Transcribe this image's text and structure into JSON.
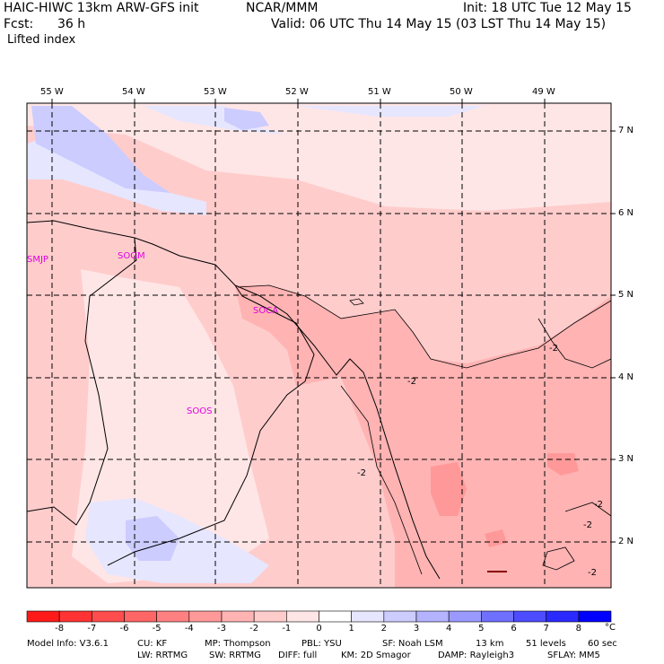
{
  "header": {
    "title": "HAIC-HIWC 13km ARW-GFS init",
    "org": "NCAR/MMM",
    "init": "Init: 18 UTC Tue 12 May 15",
    "fcst_label": "Fcst:",
    "fcst_value": "36 h",
    "valid": "Valid: 06 UTC Thu 14 May 15 (03 LST Thu 14 May 15)",
    "field": "Lifted index"
  },
  "map": {
    "lon_labels": [
      "55 W",
      "54 W",
      "53 W",
      "52 W",
      "51 W",
      "50 W",
      "49 W"
    ],
    "lat_labels": [
      "7 N",
      "6 N",
      "5 N",
      "4 N",
      "3 N",
      "2 N"
    ],
    "stations": [
      "SMJP",
      "SOGM",
      "SOCA",
      "SOOS"
    ],
    "contour_labels": [
      "-2",
      "-2",
      "-2",
      "-2",
      "-2",
      "-2"
    ],
    "station_color": "#e000e0"
  },
  "colorbar": {
    "labels": [
      "-8",
      "-7",
      "-6",
      "-5",
      "-4",
      "-3",
      "-2",
      "-1",
      "0",
      "1",
      "2",
      "3",
      "4",
      "5",
      "6",
      "7",
      "8"
    ],
    "unit": "°C",
    "colors": [
      "#ff1a1a",
      "#ff3333",
      "#ff4d4d",
      "#ff6666",
      "#ff8080",
      "#ff9999",
      "#ffb3b3",
      "#ffcccc",
      "#ffe6e6",
      "#ffffff",
      "#e6e6ff",
      "#ccccff",
      "#b3b3ff",
      "#9999ff",
      "#7070ff",
      "#4d4dff",
      "#2a2aff",
      "#0000ff"
    ]
  },
  "footer": {
    "line1": [
      "Model Info: V3.6.1",
      "CU: KF",
      "MP: Thompson",
      "PBL: YSU",
      "SF: Noah LSM",
      "13 km",
      "51 levels",
      "60 sec"
    ],
    "line2": [
      "LW: RRTMG",
      "SW: RRTMG",
      "DIFF: full",
      "KM: 2D Smagor",
      "DAMP: Rayleigh3",
      "SFLAY: MM5"
    ]
  }
}
